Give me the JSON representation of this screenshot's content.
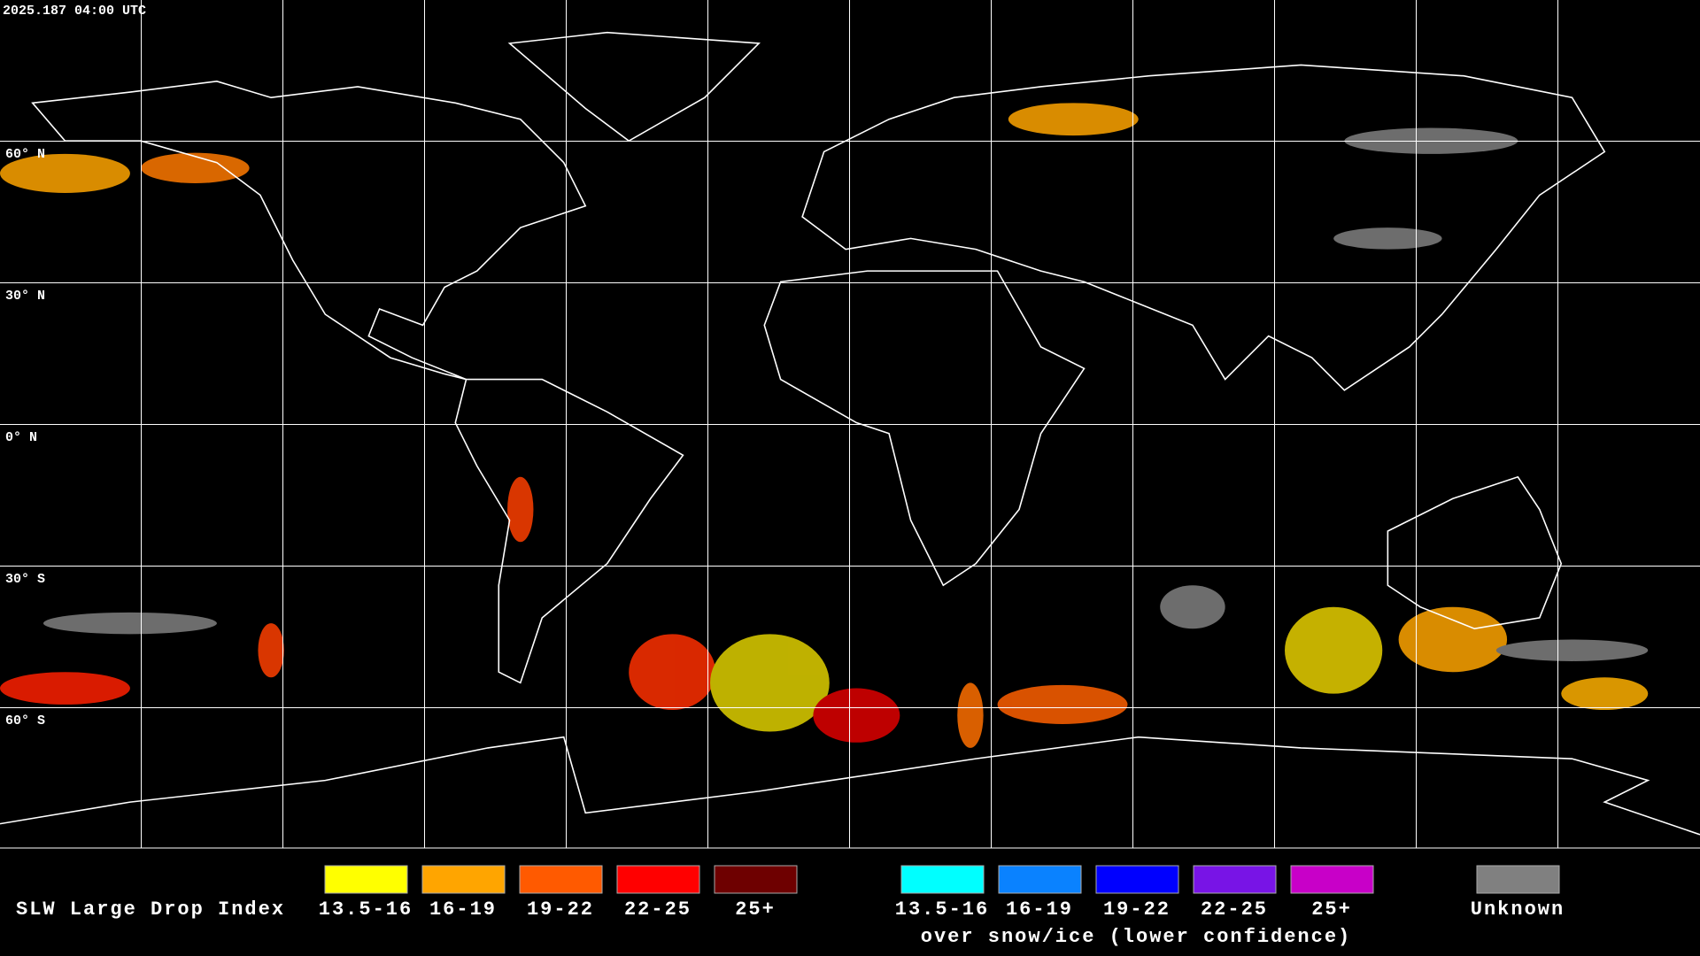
{
  "header": {
    "timestamp": "2025.187 04:00 UTC"
  },
  "map": {
    "latitude_labels": [
      "60° N",
      "30° N",
      "0° N",
      "30° S",
      "60° S"
    ]
  },
  "legend": {
    "title": "SLW Large Drop Index",
    "groups": [
      {
        "entries": [
          {
            "label": "13.5-16",
            "color": "#ffff00"
          },
          {
            "label": "16-19",
            "color": "#ffa500"
          },
          {
            "label": "19-22",
            "color": "#ff5a00"
          },
          {
            "label": "22-25",
            "color": "#ff0000"
          },
          {
            "label": "25+",
            "color": "#6e0000"
          }
        ]
      },
      {
        "entries": [
          {
            "label": "13.5-16",
            "color": "#00ffff"
          },
          {
            "label": "16-19",
            "color": "#0a82ff"
          },
          {
            "label": "19-22",
            "color": "#0000ff"
          },
          {
            "label": "22-25",
            "color": "#7814e6"
          },
          {
            "label": "25+",
            "color": "#c800c8"
          }
        ],
        "subtitle": "over snow/ice (lower confidence)"
      }
    ],
    "unknown": {
      "label": "Unknown",
      "color": "#808080"
    }
  }
}
